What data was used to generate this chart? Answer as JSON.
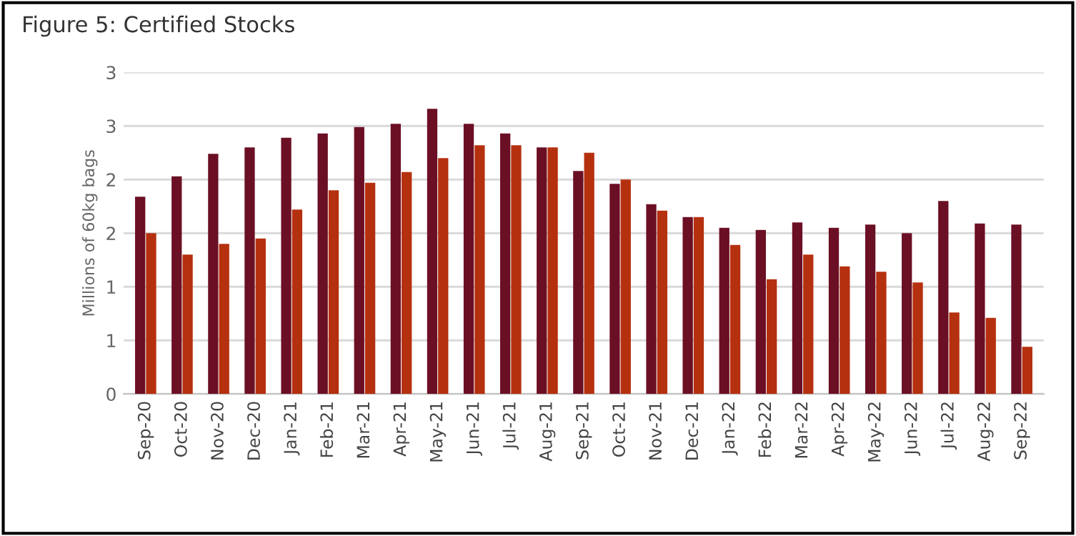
{
  "chart_data": {
    "type": "bar",
    "title": "Figure 5: Certified Stocks",
    "ylabel": "Millions of 60kg bags",
    "categories": [
      "Sep-20",
      "Oct-20",
      "Nov-20",
      "Dec-20",
      "Jan-21",
      "Feb-21",
      "Mar-21",
      "Apr-21",
      "May-21",
      "Jun-21",
      "Jul-21",
      "Aug-21",
      "Sep-21",
      "Oct-21",
      "Nov-21",
      "Dec-21",
      "Jan-22",
      "Feb-22",
      "Mar-22",
      "Apr-22",
      "May-22",
      "Jun-22",
      "Jul-22",
      "Aug-22",
      "Sep-22"
    ],
    "series": [
      {
        "color": "#6b0f24",
        "values": [
          1.84,
          2.03,
          2.24,
          2.3,
          2.39,
          2.43,
          2.49,
          2.52,
          2.66,
          2.52,
          2.43,
          2.3,
          2.08,
          1.96,
          1.77,
          1.65,
          1.55,
          1.53,
          1.6,
          1.55,
          1.58,
          1.5,
          1.8,
          1.59,
          1.58
        ]
      },
      {
        "color": "#b5300f",
        "values": [
          1.5,
          1.3,
          1.4,
          1.45,
          1.72,
          1.9,
          1.97,
          2.07,
          2.2,
          2.32,
          2.32,
          2.3,
          2.25,
          2.0,
          1.71,
          1.65,
          1.39,
          1.07,
          1.3,
          1.19,
          1.14,
          1.04,
          0.76,
          0.71,
          0.44
        ]
      }
    ],
    "ylim": [
      0,
      3
    ],
    "yticks": [
      0,
      {
        "value": 0.5,
        "label": "1"
      },
      1,
      {
        "value": 1.5,
        "label": "2"
      },
      2,
      {
        "value": 2.5,
        "label": "3"
      },
      3
    ],
    "grid": "y"
  }
}
